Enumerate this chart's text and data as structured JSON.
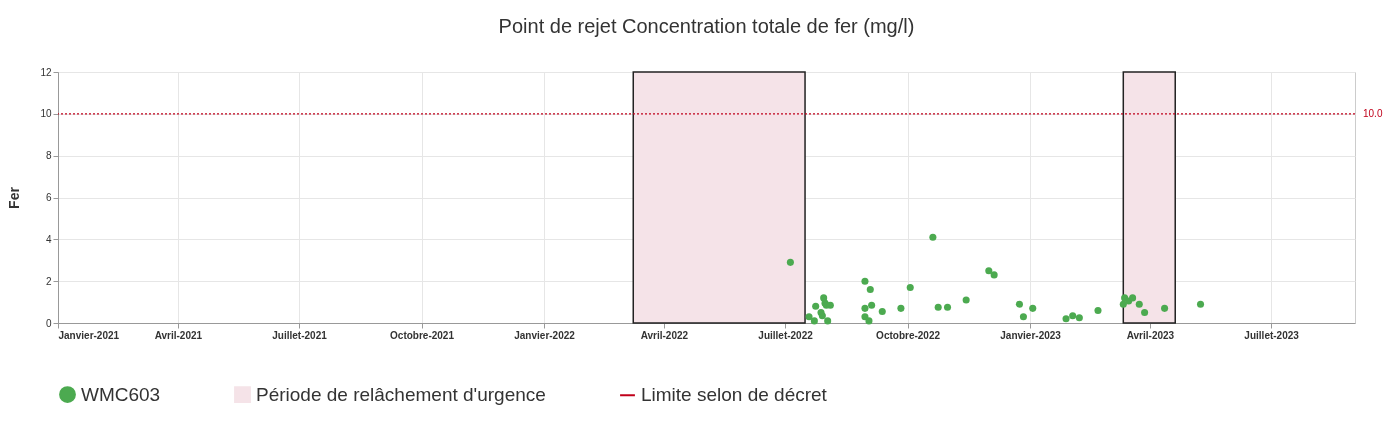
{
  "chart_data": {
    "type": "scatter",
    "title": "Point de rejet Concentration totale de fer (mg/l)",
    "ylabel": "Fer",
    "xlim": [
      "2021-01-01",
      "2023-09-02"
    ],
    "xticks": [
      {
        "value": "2021-01-01",
        "label": "Janvier-2021"
      },
      {
        "value": "2021-04-01",
        "label": "Avril-2021"
      },
      {
        "value": "2021-07-01",
        "label": "Juillet-2021"
      },
      {
        "value": "2021-10-01",
        "label": "Octobre-2021"
      },
      {
        "value": "2022-01-01",
        "label": "Janvier-2022"
      },
      {
        "value": "2022-04-01",
        "label": "Avril-2022"
      },
      {
        "value": "2022-07-01",
        "label": "Juillet-2022"
      },
      {
        "value": "2022-10-01",
        "label": "Octobre-2022"
      },
      {
        "value": "2023-01-01",
        "label": "Janvier-2023"
      },
      {
        "value": "2023-04-01",
        "label": "Avril-2023"
      },
      {
        "value": "2023-07-01",
        "label": "Juillet-2023"
      }
    ],
    "ylim": [
      0,
      12
    ],
    "yticks": [
      0,
      2,
      4,
      6,
      8,
      10,
      12
    ],
    "grid": true,
    "legend": "bottom",
    "marker": "circle",
    "series": [
      {
        "name": "WMC603",
        "color": "#4caa50",
        "x": [
          "2022-07-05",
          "2022-07-19",
          "2022-07-23",
          "2022-07-24",
          "2022-07-28",
          "2022-07-29",
          "2022-07-30",
          "2022-07-31",
          "2022-08-01",
          "2022-08-02",
          "2022-08-04",
          "2022-08-30",
          "2022-08-30",
          "2022-08-30",
          "2022-09-02",
          "2022-09-03",
          "2022-09-04",
          "2022-09-12",
          "2022-09-26",
          "2022-10-03",
          "2022-10-20",
          "2022-10-24",
          "2022-10-31",
          "2022-11-14",
          "2022-12-01",
          "2022-12-05",
          "2022-12-24",
          "2022-12-27",
          "2023-01-03",
          "2023-01-28",
          "2023-02-02",
          "2023-02-07",
          "2023-02-21",
          "2023-03-12",
          "2023-03-13",
          "2023-03-16",
          "2023-03-19",
          "2023-03-24",
          "2023-03-28",
          "2023-04-12",
          "2023-05-09"
        ],
        "values": [
          2.9,
          0.3,
          0.1,
          0.8,
          0.5,
          0.35,
          1.2,
          0.95,
          0.85,
          0.1,
          0.85,
          2.0,
          0.7,
          0.3,
          0.1,
          1.6,
          0.85,
          0.55,
          0.7,
          1.7,
          4.1,
          0.75,
          0.75,
          1.1,
          2.5,
          2.3,
          0.9,
          0.3,
          0.7,
          0.2,
          0.35,
          0.25,
          0.6,
          0.9,
          1.2,
          1.05,
          1.2,
          0.9,
          0.5,
          0.7,
          0.9
        ]
      }
    ],
    "bands": [
      {
        "axis": "x",
        "from": "2022-03-09",
        "to": "2022-07-16",
        "label": "Période de relâchement d'urgence",
        "color": "#f5e3e8"
      },
      {
        "axis": "x",
        "from": "2023-03-12",
        "to": "2023-04-20",
        "color": "#f5e3e8"
      }
    ],
    "ref_lines": [
      {
        "axis": "y",
        "value": 10,
        "label": "Limite selon de décret",
        "color": "#c0001a",
        "line_style": "dotted"
      }
    ],
    "annotations": [
      "10.0"
    ]
  }
}
